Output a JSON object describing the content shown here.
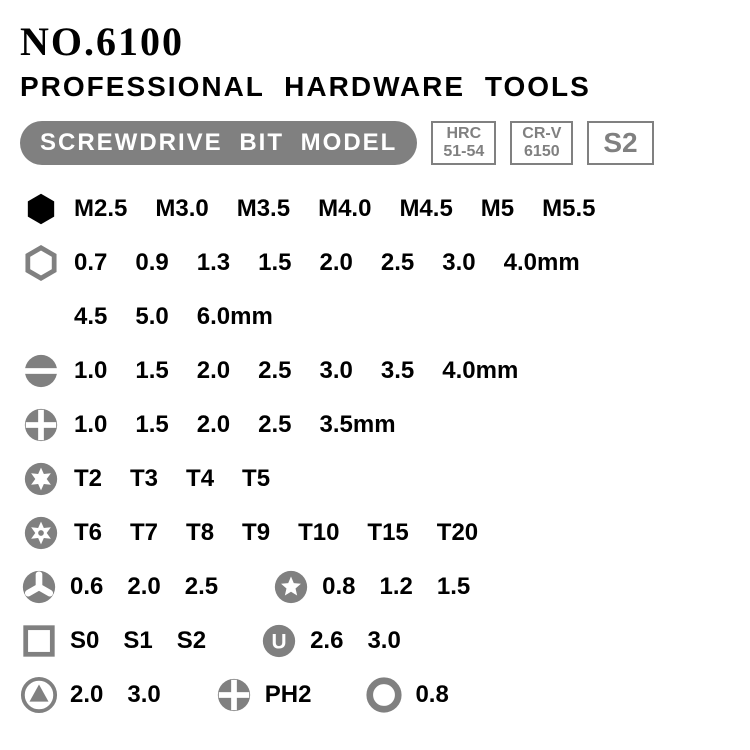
{
  "header": {
    "model_no": "NO.6100",
    "subtitle": "PROFESSIONAL HARDWARE TOOLS",
    "pill": "SCREWDRIVE BIT MODEL",
    "specs": [
      {
        "line1": "HRC",
        "line2": "51-54"
      },
      {
        "line1": "CR-V",
        "line2": "6150"
      }
    ],
    "spec_big": "S2"
  },
  "colors": {
    "gray": "#808080",
    "black": "#000000",
    "white": "#ffffff"
  },
  "rows": [
    {
      "icon": "hex-solid",
      "values": [
        "M2.5",
        "M3.0",
        "M3.5",
        "M4.0",
        "M4.5",
        "M5",
        "M5.5"
      ]
    },
    {
      "icon": "hex-outline",
      "values": [
        "0.7",
        "0.9",
        "1.3",
        "1.5",
        "2.0",
        "2.5",
        "3.0",
        "4.0mm"
      ]
    },
    {
      "icon": "indent",
      "values": [
        "4.5",
        "5.0",
        "6.0mm"
      ]
    },
    {
      "icon": "slotted",
      "values": [
        "1.0",
        "1.5",
        "2.0",
        "2.5",
        "3.0",
        "3.5",
        "4.0mm"
      ]
    },
    {
      "icon": "phillips",
      "values": [
        "1.0",
        "1.5",
        "2.0",
        "2.5",
        "3.5mm"
      ]
    },
    {
      "icon": "torx",
      "values": [
        "T2",
        "T3",
        "T4",
        "T5"
      ]
    },
    {
      "icon": "torx-security",
      "values": [
        "T6",
        "T7",
        "T8",
        "T9",
        "T10",
        "T15",
        "T20"
      ]
    }
  ],
  "combo_rows": [
    [
      {
        "icon": "triwing",
        "values": [
          "0.6",
          "2.0",
          "2.5"
        ]
      },
      {
        "icon": "pentalobe",
        "values": [
          "0.8",
          "1.2",
          "1.5"
        ]
      }
    ],
    [
      {
        "icon": "square",
        "values": [
          "S0",
          "S1",
          "S2"
        ]
      },
      {
        "icon": "spanner",
        "values": [
          "2.6",
          "3.0"
        ]
      }
    ],
    [
      {
        "icon": "triangle",
        "values": [
          "2.0",
          "3.0"
        ]
      },
      {
        "icon": "phillips-gray",
        "values": [
          "PH2"
        ]
      },
      {
        "icon": "standoff",
        "values": [
          "0.8"
        ]
      }
    ]
  ]
}
